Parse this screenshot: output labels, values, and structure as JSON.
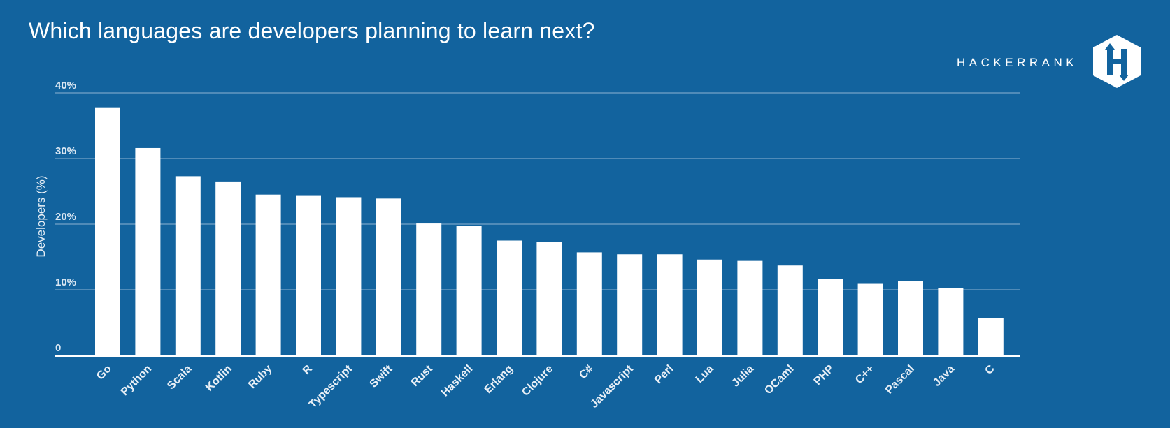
{
  "header": {
    "title": "Which languages are developers planning to learn next?",
    "brand": "HACKERRANK",
    "logo_letter": "H"
  },
  "colors": {
    "background": "#12639e",
    "bar": "#ffffff",
    "gridline": "#8fb3d3",
    "text": "#ffffff"
  },
  "chart_data": {
    "type": "bar",
    "title": "Which languages are developers planning to learn next?",
    "xlabel": "",
    "ylabel": "Developers (%)",
    "ylim": [
      0,
      40
    ],
    "yticks": [
      0,
      10,
      20,
      30,
      40
    ],
    "ytick_labels": [
      "0",
      "10%",
      "20%",
      "30%",
      "40%"
    ],
    "grid": true,
    "legend": "none",
    "categories": [
      "Go",
      "Python",
      "Scala",
      "Kotlin",
      "Ruby",
      "R",
      "Typescript",
      "Swift",
      "Rust",
      "Haskell",
      "Erlang",
      "Clojure",
      "C#",
      "Javascript",
      "Perl",
      "Lua",
      "Julia",
      "OCaml",
      "PHP",
      "C++",
      "Pascal",
      "Java",
      "C"
    ],
    "values": [
      37.8,
      31.6,
      27.3,
      26.5,
      24.5,
      24.3,
      24.1,
      23.9,
      20.1,
      19.7,
      17.5,
      17.3,
      15.7,
      15.4,
      15.4,
      14.6,
      14.4,
      13.7,
      11.6,
      10.9,
      11.3,
      10.3,
      5.7
    ]
  }
}
